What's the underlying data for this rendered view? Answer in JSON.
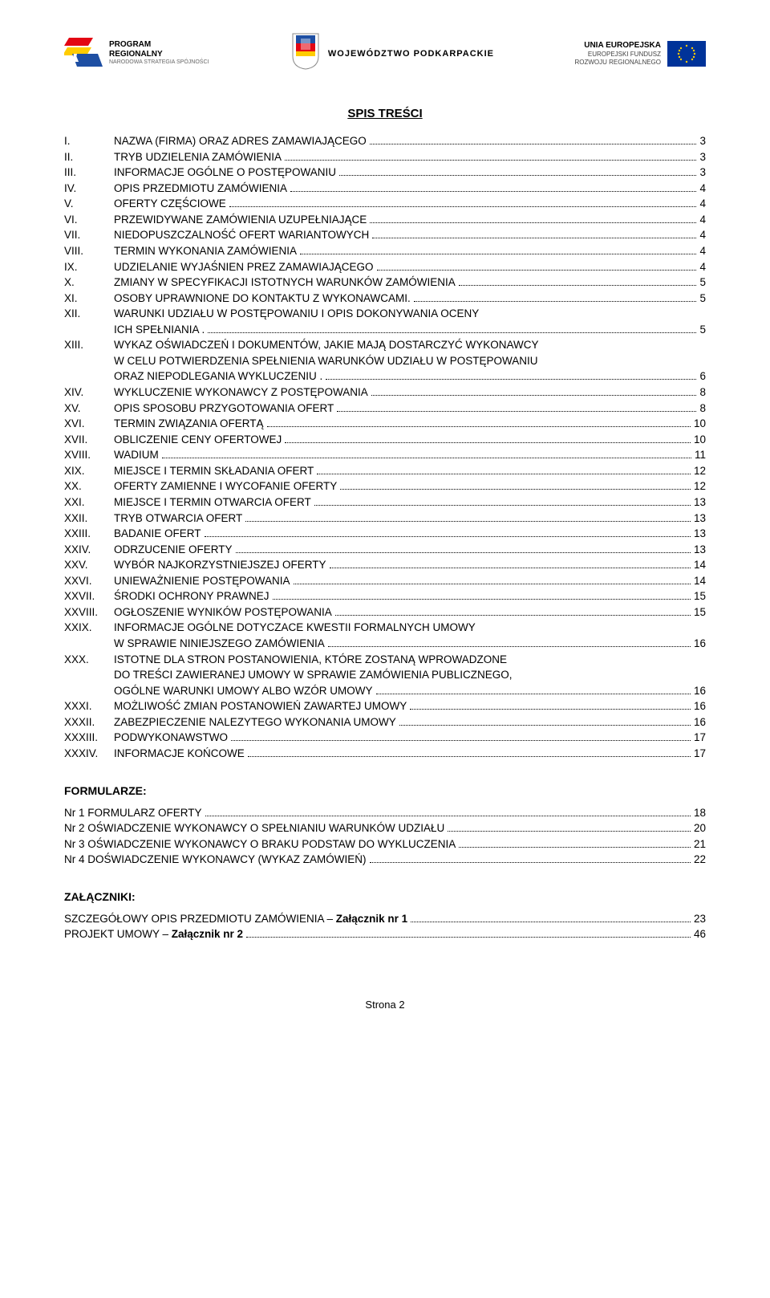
{
  "header": {
    "left": {
      "line1": "PROGRAM",
      "line2": "REGIONALNY",
      "line3": "NARODOWA STRATEGIA SPÓJNOŚCI"
    },
    "center": {
      "text": "WOJEWÓDZTWO PODKARPACKIE"
    },
    "right": {
      "l1": "UNIA EUROPEJSKA",
      "l2": "EUROPEJSKI FUNDUSZ",
      "l3": "ROZWOJU REGIONALNEGO"
    }
  },
  "title": "SPIS TREŚCI",
  "toc": [
    {
      "roman": "I.",
      "label": "NAZWA (FIRMA)  ORAZ ADRES ZAMAWIAJĄCEGO",
      "page": "3"
    },
    {
      "roman": "II.",
      "label": "TRYB UDZIELENIA ZAMÓWIENIA",
      "page": "3"
    },
    {
      "roman": "III.",
      "label": "INFORMACJE OGÓLNE O POSTĘPOWANIU",
      "page": "3"
    },
    {
      "roman": "IV.",
      "label": "OPIS PRZEDMIOTU ZAMÓWIENIA",
      "page": "4"
    },
    {
      "roman": "V.",
      "label": "OFERTY CZĘŚCIOWE",
      "page": "4"
    },
    {
      "roman": "VI.",
      "label": "PRZEWIDYWANE ZAMÓWIENIA UZUPEŁNIAJĄCE",
      "page": "4"
    },
    {
      "roman": "VII.",
      "label": "NIEDOPUSZCZALNOŚĆ OFERT WARIANTOWYCH",
      "page": "4"
    },
    {
      "roman": "VIII.",
      "label": "TERMIN WYKONANIA ZAMÓWIENIA",
      "page": "4"
    },
    {
      "roman": "IX.",
      "label": "UDZIELANIE WYJAŚNIEN PREZ ZAMAWIAJĄCEGO",
      "page": "4"
    },
    {
      "roman": "X.",
      "label": "ZMIANY W SPECYFIKACJI ISTOTNYCH WARUNKÓW ZAMÓWIENIA",
      "page": "5"
    },
    {
      "roman": "XI.",
      "label": "OSOBY UPRAWNIONE DO KONTAKTU Z WYKONAWCAMI.",
      "page": "5"
    },
    {
      "roman": "XII.",
      "label": "WARUNKI UDZIAŁU W POSTĘPOWANIU I OPIS DOKONYWANIA OCENY",
      "cont": [
        {
          "label": "ICH SPEŁNIANIA .",
          "page": "5"
        }
      ]
    },
    {
      "roman": "XIII.",
      "label": "WYKAZ OŚWIADCZEŃ I DOKUMENTÓW, JAKIE MAJĄ DOSTARCZYĆ WYKONAWCY",
      "cont": [
        {
          "label": "W CELU POTWIERDZENIA SPEŁNIENIA WARUNKÓW UDZIAŁU  W POSTĘPOWANIU"
        },
        {
          "label": "ORAZ NIEPODLEGANIA WYKLUCZENIU .",
          "page": "6"
        }
      ]
    },
    {
      "roman": "XIV.",
      "label": "WYKLUCZENIE WYKONAWCY Z POSTĘPOWANIA",
      "page": "8"
    },
    {
      "roman": "XV.",
      "label": "OPIS SPOSOBU PRZYGOTOWANIA OFERT",
      "page": "8"
    },
    {
      "roman": "XVI.",
      "label": "TERMIN ZWIĄZANIA OFERTĄ",
      "page": "10"
    },
    {
      "roman": "XVII.",
      "label": "OBLICZENIE CENY OFERTOWEJ",
      "page": "10"
    },
    {
      "roman": "XVIII.",
      "label": "WADIUM",
      "page": "11"
    },
    {
      "roman": "XIX.",
      "label": "MIEJSCE  I  TERMIN  SKŁADANIA  OFERT",
      "page": "12"
    },
    {
      "roman": "XX.",
      "label": "OFERTY ZAMIENNE I WYCOFANIE OFERTY",
      "page": "12"
    },
    {
      "roman": "XXI.",
      "label": "MIEJSCE I TERMIN OTWARCIA OFERT",
      "page": "13"
    },
    {
      "roman": "XXII.",
      "label": "TRYB OTWARCIA OFERT",
      "page": "13"
    },
    {
      "roman": "XXIII.",
      "label": "BADANIE OFERT",
      "page": "13"
    },
    {
      "roman": "XXIV.",
      "label": "ODRZUCENIE OFERTY",
      "page": "13"
    },
    {
      "roman": "XXV.",
      "label": "WYBÓR NAJKORZYSTNIEJSZEJ OFERTY",
      "page": "14"
    },
    {
      "roman": "XXVI.",
      "label": "UNIEWAŻNIENIE POSTĘPOWANIA",
      "page": "14"
    },
    {
      "roman": "XXVII.",
      "label": "ŚRODKI OCHRONY PRAWNEJ",
      "page": "15"
    },
    {
      "roman": "XXVIII.",
      "label": "OGŁOSZENIE WYNIKÓW POSTĘPOWANIA",
      "page": "15"
    },
    {
      "roman": "XXIX.",
      "label": "INFORMACJE OGÓLNE DOTYCZACE KWESTII FORMALNYCH UMOWY",
      "cont": [
        {
          "label": "W SPRAWIE NINIEJSZEGO ZAMÓWIENIA",
          "page": "16"
        }
      ]
    },
    {
      "roman": "XXX.",
      "label": "ISTOTNE DLA STRON POSTANOWIENIA, KTÓRE ZOSTANĄ WPROWADZONE",
      "cont": [
        {
          "label": "DO TREŚCI ZAWIERANEJ UMOWY W SPRAWIE ZAMÓWIENIA PUBLICZNEGO,"
        },
        {
          "label": "OGÓLNE WARUNKI UMOWY ALBO WZÓR UMOWY",
          "page": "16"
        }
      ]
    },
    {
      "roman": "XXXI.",
      "label": "MOŻLIWOŚĆ ZMIAN POSTANOWIEŃ ZAWARTEJ UMOWY",
      "page": "16"
    },
    {
      "roman": "XXXII.",
      "label": "ZABEZPIECZENIE NALEZYTEGO WYKONANIA UMOWY",
      "page": "16"
    },
    {
      "roman": "XXXIII.",
      "label": "PODWYKONAWSTWO",
      "page": "17"
    },
    {
      "roman": "XXXIV.",
      "label": "INFORMACJE KOŃCOWE",
      "page": "17"
    }
  ],
  "formularze": {
    "heading": "FORMULARZE:",
    "items": [
      {
        "label": "Nr 1 FORMULARZ OFERTY",
        "page": "18"
      },
      {
        "label": "Nr 2 OŚWIADCZENIE WYKONAWCY O SPEŁNIANIU WARUNKÓW UDZIAŁU",
        "page": "20"
      },
      {
        "label": "Nr 3 OŚWIADCZENIE WYKONAWCY O BRAKU PODSTAW DO WYKLUCZENIA",
        "page": "21"
      },
      {
        "label": "Nr 4 DOŚWIADCZENIE WYKONAWCY (WYKAZ ZAMÓWIEŃ)",
        "page": "22"
      }
    ]
  },
  "zalaczniki": {
    "heading": "ZAŁĄCZNIKI:",
    "items": [
      {
        "prefix": "SZCZEGÓŁOWY OPIS PRZEDMIOTU ZAMÓWIENIA – ",
        "bold": "Załącznik nr 1",
        "page": "23"
      },
      {
        "prefix": "PROJEKT UMOWY – ",
        "bold": "Załącznik nr 2",
        "page": "46"
      }
    ]
  },
  "footer": "Strona 2"
}
